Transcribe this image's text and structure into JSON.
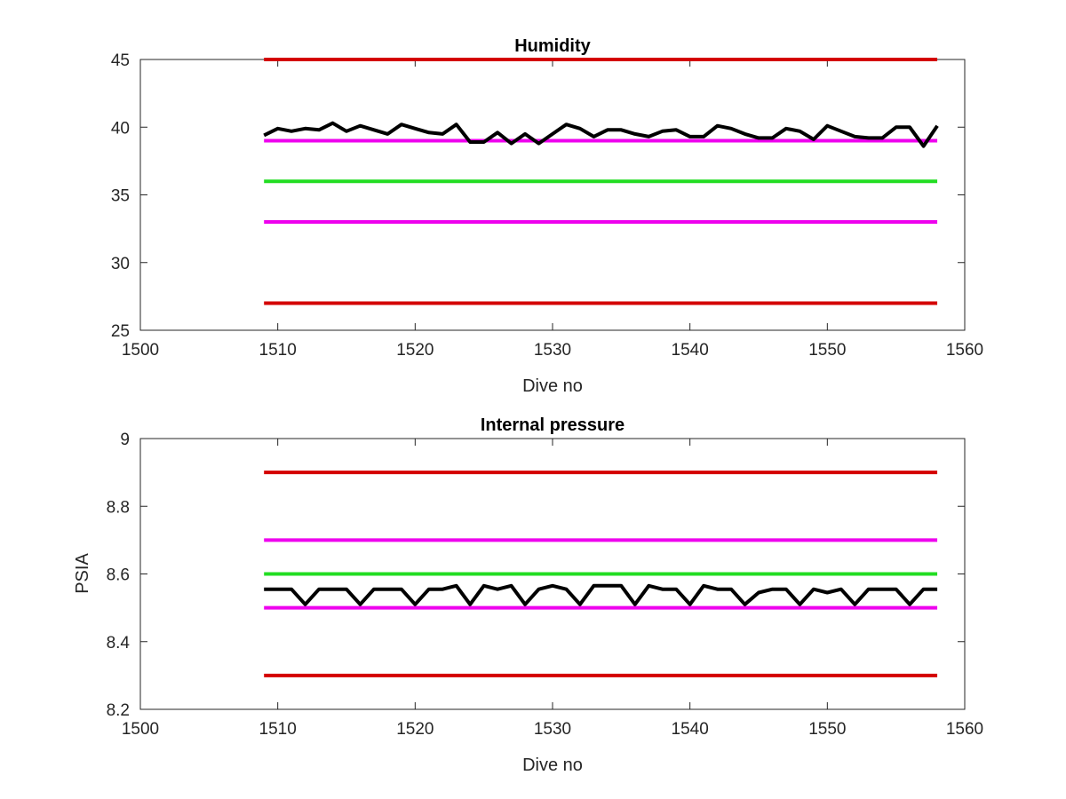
{
  "chart_data": [
    {
      "type": "line",
      "title": "Humidity",
      "xlabel": "Dive no",
      "ylabel": "",
      "xlim": [
        1500,
        1560
      ],
      "ylim": [
        25,
        45
      ],
      "xticks": [
        1500,
        1510,
        1520,
        1530,
        1540,
        1550,
        1560
      ],
      "yticks": [
        25,
        30,
        35,
        40,
        45
      ],
      "grid": false,
      "reference_lines": [
        {
          "y": 45,
          "x_range": [
            1509,
            1558
          ],
          "color": "#d40000"
        },
        {
          "y": 39,
          "x_range": [
            1509,
            1558
          ],
          "color": "#ee00ee"
        },
        {
          "y": 36,
          "x_range": [
            1509,
            1558
          ],
          "color": "#22dd22"
        },
        {
          "y": 33,
          "x_range": [
            1509,
            1558
          ],
          "color": "#ee00ee"
        },
        {
          "y": 27,
          "x_range": [
            1509,
            1558
          ],
          "color": "#d40000"
        }
      ],
      "series": [
        {
          "color": "#000000",
          "x": [
            1509,
            1510,
            1511,
            1512,
            1513,
            1514,
            1515,
            1516,
            1517,
            1518,
            1519,
            1520,
            1521,
            1522,
            1523,
            1524,
            1525,
            1526,
            1527,
            1528,
            1529,
            1530,
            1531,
            1532,
            1533,
            1534,
            1535,
            1536,
            1537,
            1538,
            1539,
            1540,
            1541,
            1542,
            1543,
            1544,
            1545,
            1546,
            1547,
            1548,
            1549,
            1550,
            1551,
            1552,
            1553,
            1554,
            1555,
            1556,
            1557,
            1558
          ],
          "values": [
            39.4,
            39.9,
            39.7,
            39.9,
            39.8,
            40.3,
            39.7,
            40.1,
            39.8,
            39.5,
            40.2,
            39.9,
            39.6,
            39.5,
            40.2,
            38.9,
            38.9,
            39.6,
            38.8,
            39.5,
            38.8,
            39.5,
            40.2,
            39.9,
            39.3,
            39.8,
            39.8,
            39.5,
            39.3,
            39.7,
            39.8,
            39.3,
            39.3,
            40.1,
            39.9,
            39.5,
            39.2,
            39.2,
            39.9,
            39.7,
            39.1,
            40.1,
            39.7,
            39.3,
            39.2,
            39.2,
            40.0,
            40.0,
            38.6,
            40.1
          ]
        }
      ]
    },
    {
      "type": "line",
      "title": "Internal pressure",
      "xlabel": "Dive no",
      "ylabel": "PSIA",
      "xlim": [
        1500,
        1560
      ],
      "ylim": [
        8.2,
        9
      ],
      "xticks": [
        1500,
        1510,
        1520,
        1530,
        1540,
        1550,
        1560
      ],
      "yticks": [
        8.2,
        8.4,
        8.6,
        8.8,
        9
      ],
      "yticklabels": [
        "8.2",
        "8.4",
        "8.6",
        "8.8",
        "9"
      ],
      "grid": false,
      "reference_lines": [
        {
          "y": 8.9,
          "x_range": [
            1509,
            1558
          ],
          "color": "#d40000"
        },
        {
          "y": 8.7,
          "x_range": [
            1509,
            1558
          ],
          "color": "#ee00ee"
        },
        {
          "y": 8.6,
          "x_range": [
            1509,
            1558
          ],
          "color": "#22dd22"
        },
        {
          "y": 8.5,
          "x_range": [
            1509,
            1558
          ],
          "color": "#ee00ee"
        },
        {
          "y": 8.3,
          "x_range": [
            1509,
            1558
          ],
          "color": "#d40000"
        }
      ],
      "series": [
        {
          "color": "#000000",
          "x": [
            1509,
            1510,
            1511,
            1512,
            1513,
            1514,
            1515,
            1516,
            1517,
            1518,
            1519,
            1520,
            1521,
            1522,
            1523,
            1524,
            1525,
            1526,
            1527,
            1528,
            1529,
            1530,
            1531,
            1532,
            1533,
            1534,
            1535,
            1536,
            1537,
            1538,
            1539,
            1540,
            1541,
            1542,
            1543,
            1544,
            1545,
            1546,
            1547,
            1548,
            1549,
            1550,
            1551,
            1552,
            1553,
            1554,
            1555,
            1556,
            1557,
            1558
          ],
          "values": [
            8.555,
            8.555,
            8.555,
            8.51,
            8.555,
            8.555,
            8.555,
            8.51,
            8.555,
            8.555,
            8.555,
            8.51,
            8.555,
            8.555,
            8.565,
            8.51,
            8.565,
            8.555,
            8.565,
            8.51,
            8.555,
            8.565,
            8.555,
            8.51,
            8.565,
            8.565,
            8.565,
            8.51,
            8.565,
            8.555,
            8.555,
            8.51,
            8.565,
            8.555,
            8.555,
            8.51,
            8.545,
            8.555,
            8.555,
            8.51,
            8.555,
            8.545,
            8.555,
            8.51,
            8.555,
            8.555,
            8.555,
            8.51,
            8.555,
            8.555
          ]
        }
      ]
    }
  ]
}
